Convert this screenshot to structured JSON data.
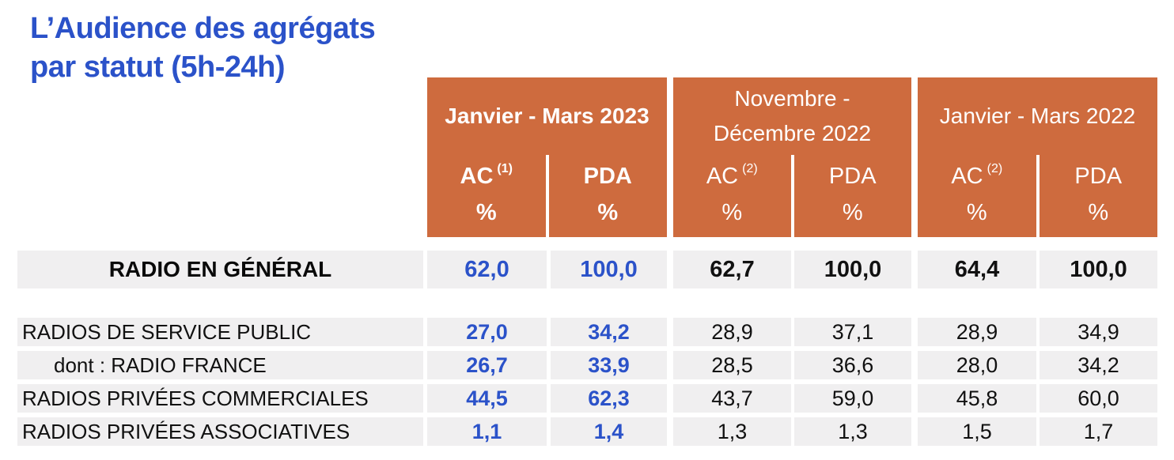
{
  "title": {
    "line1": "L’Audience des agrégats",
    "line2": "par statut (5h-24h)"
  },
  "colors": {
    "header_orange": "#ce6b3e",
    "brand_blue": "#2b52c9",
    "row_gray": "#f0eff0"
  },
  "header": {
    "groups": [
      {
        "period": "Janvier - Mars 2023",
        "ac_label": "AC",
        "ac_sup": "(1)",
        "pda_label": "PDA",
        "percent": "%"
      },
      {
        "period": "Novembre -\nDécembre 2022",
        "ac_label": "AC",
        "ac_sup": "(2)",
        "pda_label": "PDA",
        "percent": "%"
      },
      {
        "period": "Janvier - Mars 2022",
        "ac_label": "AC",
        "ac_sup": "(2)",
        "pda_label": "PDA",
        "percent": "%"
      }
    ]
  },
  "table": {
    "total_row": {
      "label": "RADIO EN GÉNÉRAL",
      "values": [
        "62,0",
        "100,0",
        "62,7",
        "100,0",
        "64,4",
        "100,0"
      ]
    },
    "rows": [
      {
        "label": "RADIOS DE SERVICE PUBLIC",
        "values": [
          "27,0",
          "34,2",
          "28,9",
          "37,1",
          "28,9",
          "34,9"
        ]
      },
      {
        "label": "dont : RADIO FRANCE",
        "values": [
          "26,7",
          "33,9",
          "28,5",
          "36,6",
          "28,0",
          "34,2"
        ]
      },
      {
        "label": "RADIOS PRIVÉES COMMERCIALES",
        "values": [
          "44,5",
          "62,3",
          "43,7",
          "59,0",
          "45,8",
          "60,0"
        ]
      },
      {
        "label": "RADIOS PRIVÉES ASSOCIATIVES",
        "values": [
          "1,1",
          "1,4",
          "1,3",
          "1,3",
          "1,5",
          "1,7"
        ]
      }
    ]
  }
}
